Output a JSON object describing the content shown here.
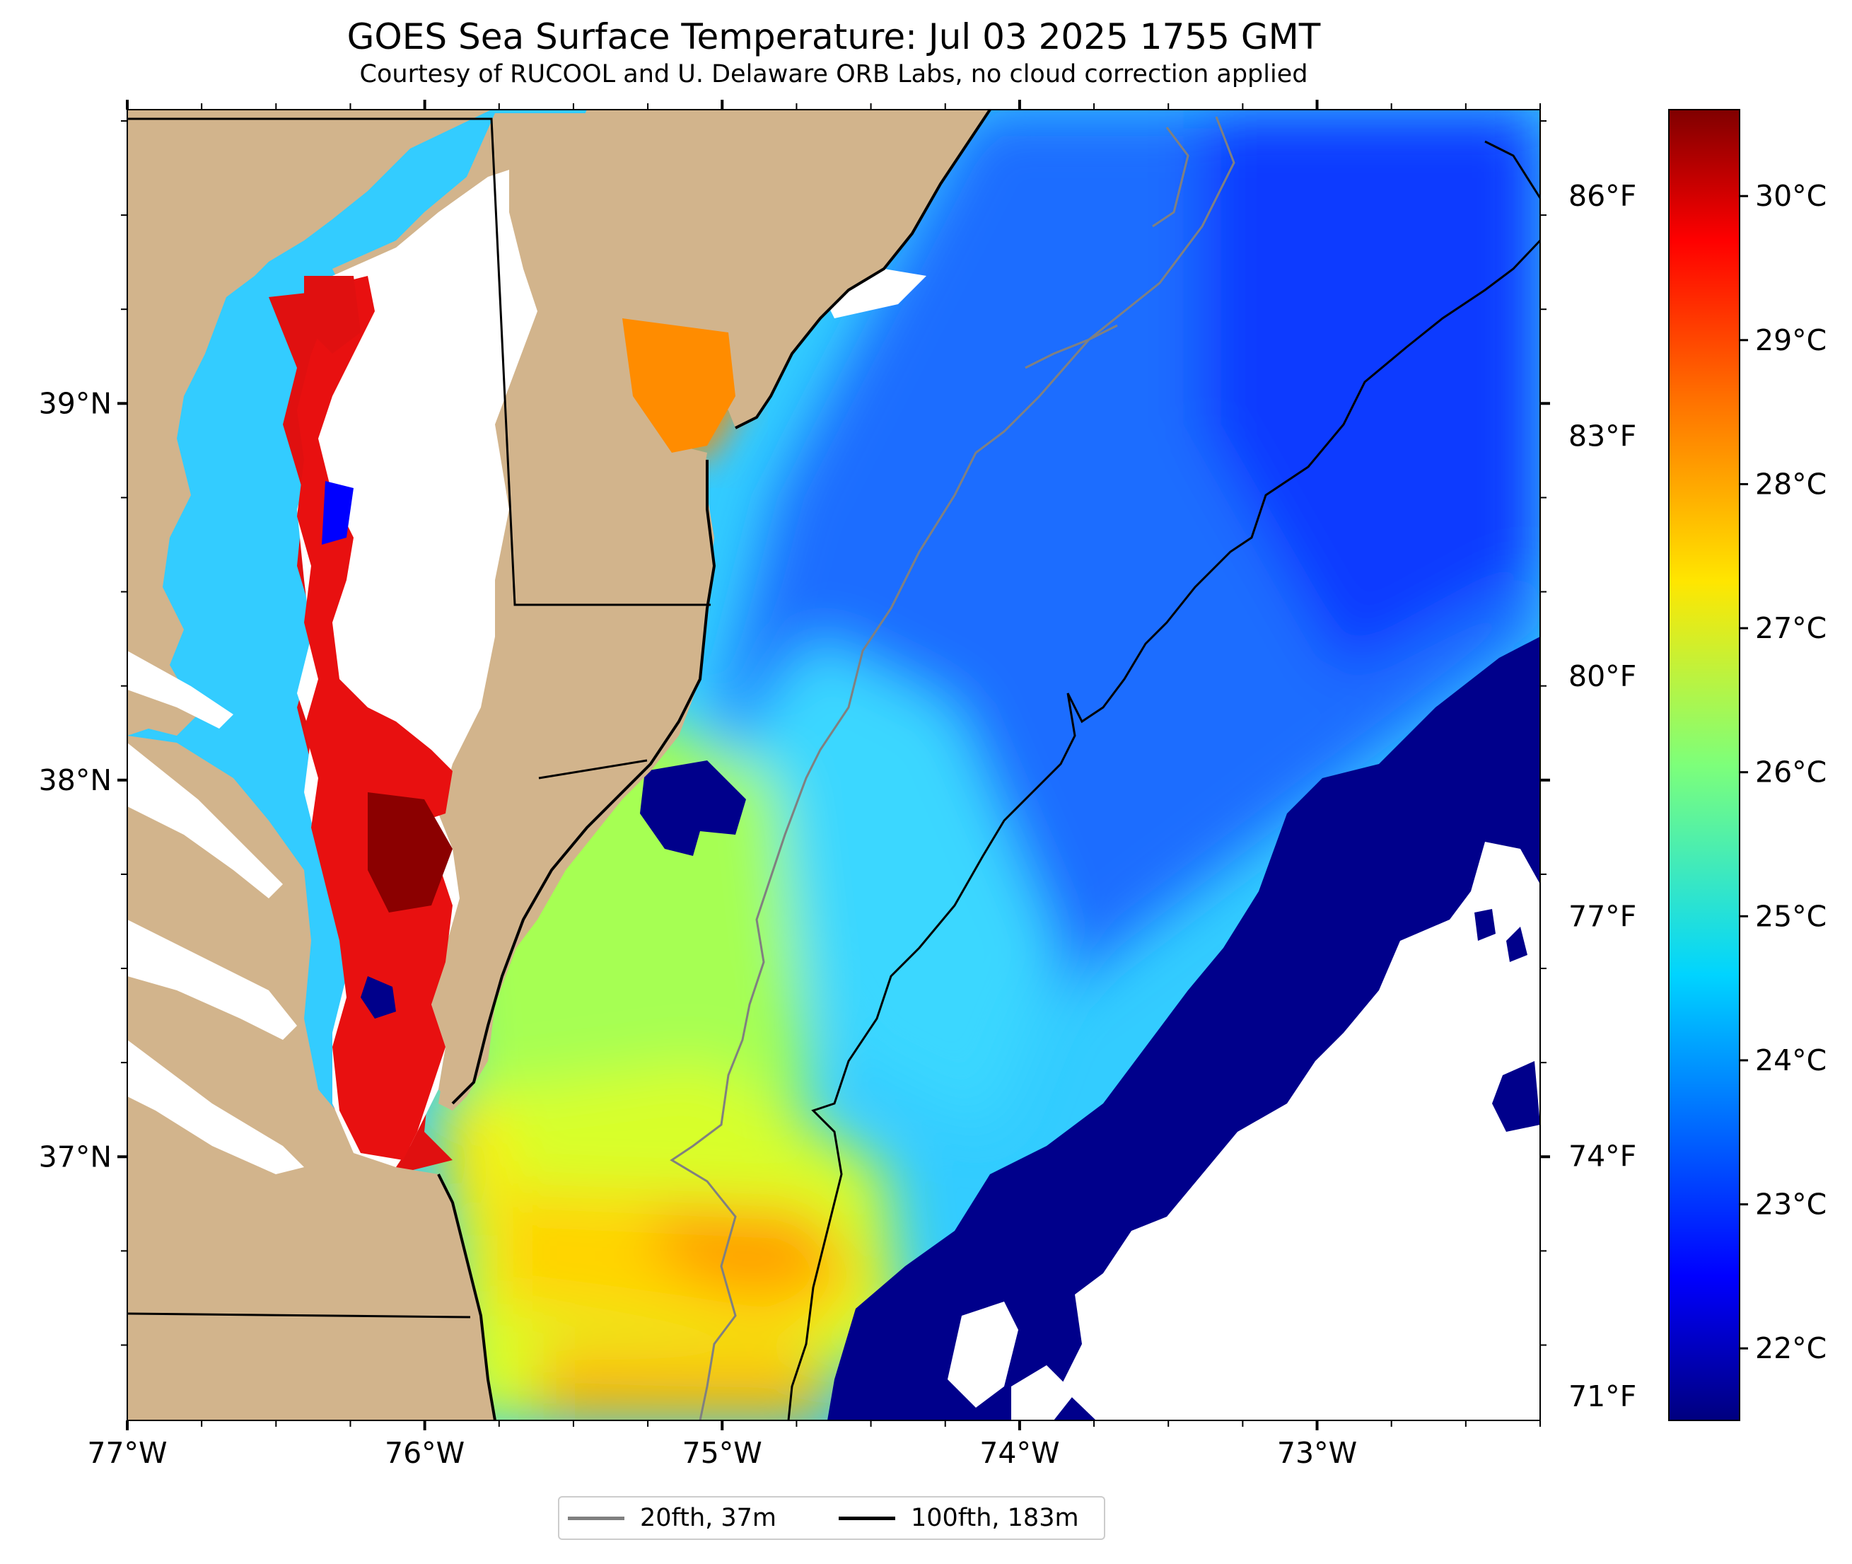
{
  "title": "GOES Sea Surface Temperature: Jul 03 2025 1755 GMT",
  "subtitle": "Courtesy of RUCOOL and U. Delaware ORB Labs, no cloud correction applied",
  "map": {
    "extent": {
      "lon_min": -77.0,
      "lon_max": -72.25,
      "lat_min": 36.3,
      "lat_max": 39.78
    },
    "x_ticks": [
      {
        "lon": -77,
        "label": "77°W"
      },
      {
        "lon": -76,
        "label": "76°W"
      },
      {
        "lon": -75,
        "label": "75°W"
      },
      {
        "lon": -74,
        "label": "74°W"
      },
      {
        "lon": -73,
        "label": "73°W"
      }
    ],
    "y_ticks": [
      {
        "lat": 39,
        "label": "39°N"
      },
      {
        "lat": 38,
        "label": "38°N"
      },
      {
        "lat": 37,
        "label": "37°N"
      }
    ],
    "right_ticks_f": [
      {
        "f": 86,
        "label": "86°F"
      },
      {
        "f": 83,
        "label": "83°F"
      },
      {
        "f": 80,
        "label": "80°F"
      },
      {
        "f": 77,
        "label": "77°F"
      },
      {
        "f": 74,
        "label": "74°F"
      },
      {
        "f": 71,
        "label": "71°F"
      }
    ],
    "colors": {
      "land": "#d2b48c",
      "no_data": "#ffffff",
      "coast": "#000000",
      "isobath_20fth": "#808080",
      "isobath_100fth": "#000000"
    }
  },
  "colorbar": {
    "cmap": "jet",
    "vmin_c": 21.5,
    "vmax_c": 30.6,
    "ticks": [
      {
        "c": 22,
        "label": "22°C"
      },
      {
        "c": 23,
        "label": "23°C"
      },
      {
        "c": 24,
        "label": "24°C"
      },
      {
        "c": 25,
        "label": "25°C"
      },
      {
        "c": 26,
        "label": "26°C"
      },
      {
        "c": 27,
        "label": "27°C"
      },
      {
        "c": 28,
        "label": "28°C"
      },
      {
        "c": 29,
        "label": "29°C"
      },
      {
        "c": 30,
        "label": "30°C"
      }
    ]
  },
  "legend": {
    "items": [
      {
        "label": "20fth, 37m",
        "color": "#808080"
      },
      {
        "label": "100fth, 183m",
        "color": "#000000"
      }
    ]
  }
}
